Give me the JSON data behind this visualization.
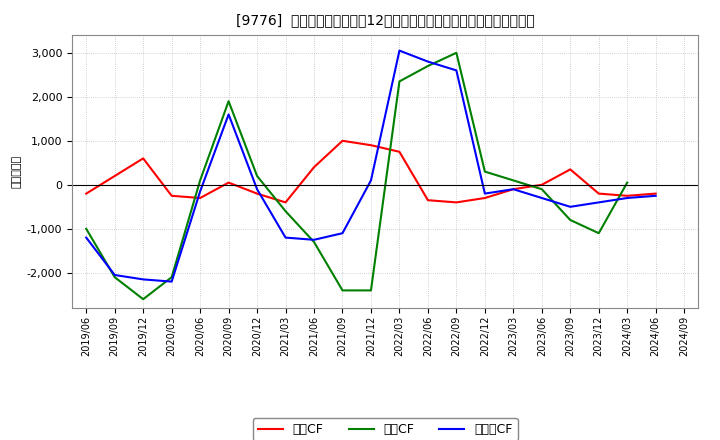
{
  "title": "[9776]  キャッシュフローの12か月移動合計の対前年同期増減額の推移",
  "ylabel": "（百万円）",
  "background_color": "#ffffff",
  "plot_bg_color": "#ffffff",
  "grid_color": "#aaaaaa",
  "x_labels": [
    "2019/06",
    "2019/09",
    "2019/12",
    "2020/03",
    "2020/06",
    "2020/09",
    "2020/12",
    "2021/03",
    "2021/06",
    "2021/09",
    "2021/12",
    "2022/03",
    "2022/06",
    "2022/09",
    "2022/12",
    "2023/03",
    "2023/06",
    "2023/09",
    "2023/12",
    "2024/03",
    "2024/06",
    "2024/09"
  ],
  "operating_cf": [
    -200,
    200,
    600,
    -250,
    -300,
    50,
    -200,
    -400,
    400,
    1000,
    900,
    750,
    -350,
    -400,
    -300,
    -100,
    0,
    350,
    -200,
    -250,
    -200,
    null
  ],
  "investing_cf": [
    -1000,
    -2100,
    -2600,
    -2100,
    100,
    1900,
    200,
    -600,
    -1300,
    -2400,
    -2400,
    2350,
    2700,
    3000,
    300,
    100,
    -100,
    -800,
    -1100,
    50,
    null,
    null
  ],
  "free_cf": [
    -1200,
    -2050,
    -2150,
    -2200,
    -150,
    1600,
    -100,
    -1200,
    -1250,
    -1100,
    100,
    3050,
    2800,
    2600,
    -200,
    -100,
    -300,
    -500,
    -400,
    -300,
    -250,
    null
  ],
  "ylim": [
    -2800,
    3400
  ],
  "yticks": [
    -2000,
    -1000,
    0,
    1000,
    2000,
    3000
  ],
  "line_colors": {
    "operating": "#ff0000",
    "investing": "#008000",
    "free": "#0000ff"
  },
  "legend_labels": {
    "operating": "営業CF",
    "investing": "投資CF",
    "free": "フリーCF"
  }
}
